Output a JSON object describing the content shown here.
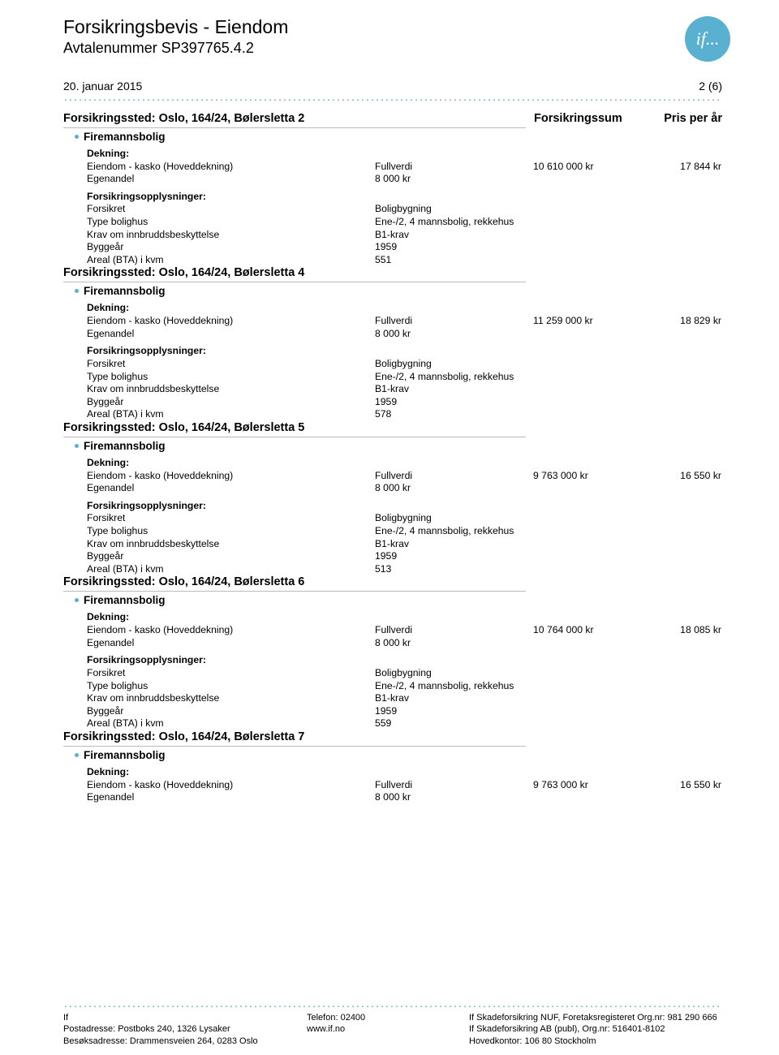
{
  "header": {
    "title": "Forsikringsbevis - Eiendom",
    "subtitle_label": "Avtalenummer",
    "agreement_number": "SP397765.4.2",
    "logo_text": "if..."
  },
  "meta": {
    "date": "20. januar 2015",
    "page": "2 (6)"
  },
  "columns": {
    "c3": "Forsikringssum",
    "c4": "Pris per år"
  },
  "labels": {
    "location_prefix": "Forsikringssted:",
    "category": "Firemannsbolig",
    "dekning": "Dekning:",
    "coverage_name": "Eiendom - kasko (Hoveddekning)",
    "egenandel": "Egenandel",
    "info_header": "Forsikringsopplysninger:",
    "forsikret": "Forsikret",
    "type_bolighus": "Type bolighus",
    "krav": "Krav om innbruddsbeskyttelse",
    "byggear": "Byggeår",
    "areal": "Areal (BTA) i kvm"
  },
  "common": {
    "fullverdi": "Fullverdi",
    "egenandel_value": "8 000 kr",
    "forsikret_value": "Boligbygning",
    "type_value": "Ene-/2, 4 mannsbolig, rekkehus",
    "krav_value": "B1-krav",
    "byggear_value": "1959"
  },
  "locations": [
    {
      "addr": "Oslo, 164/24, Bølersletta 2",
      "sum": "10 610 000 kr",
      "price": "17 844 kr",
      "areal": "551"
    },
    {
      "addr": "Oslo, 164/24, Bølersletta 4",
      "sum": "11 259 000 kr",
      "price": "18 829 kr",
      "areal": "578"
    },
    {
      "addr": "Oslo, 164/24, Bølersletta 5",
      "sum": "9 763 000 kr",
      "price": "16 550 kr",
      "areal": "513"
    },
    {
      "addr": "Oslo, 164/24, Bølersletta 6",
      "sum": "10 764 000 kr",
      "price": "18 085 kr",
      "areal": "559"
    },
    {
      "addr": "Oslo, 164/24, Bølersletta 7",
      "sum": "9 763 000 kr",
      "price": "16 550 kr",
      "areal": null
    }
  ],
  "footer": {
    "left": {
      "l1": "If",
      "l2": "Postadresse: Postboks 240, 1326 Lysaker",
      "l3": "Besøksadresse: Drammensveien 264, 0283 Oslo"
    },
    "mid": {
      "l1": "Telefon: 02400",
      "l2": "www.if.no",
      "l3": ""
    },
    "right": {
      "l1": "If Skadeforsikring NUF, Foretaksregisteret Org.nr: 981 290 666",
      "l2": "If Skadeforsikring AB (publ), Org.nr: 516401-8102",
      "l3": "Hovedkontor: 106 80 Stockholm"
    }
  },
  "colors": {
    "accent": "#5ab0d0",
    "text": "#000000",
    "rule": "#bbbbbb"
  }
}
